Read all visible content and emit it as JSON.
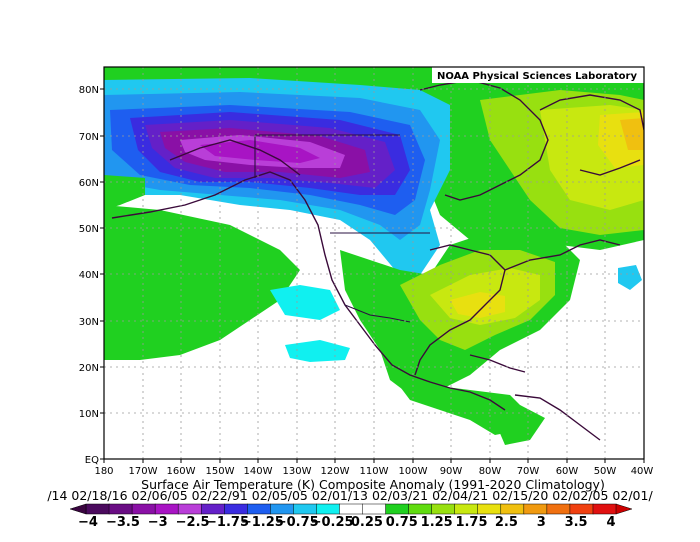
{
  "credit": "NOAA Physical Sciences Laboratory",
  "title": "Surface Air Temperature (K) Composite Anomaly (1991-2020 Climatology)",
  "dates_line": "/14 02/18/16 02/06/05 02/22/91 02/05/05 02/01/13 02/03/21 02/04/21 02/15/20 02/02/05 02/01/",
  "y_ticks": [
    "EQ",
    "10N",
    "20N",
    "30N",
    "40N",
    "50N",
    "60N",
    "70N",
    "80N"
  ],
  "x_ticks": [
    "180",
    "170W",
    "160W",
    "150W",
    "140W",
    "130W",
    "120W",
    "110W",
    "100W",
    "90W",
    "80W",
    "70W",
    "60W",
    "50W",
    "40W"
  ],
  "colorbar": {
    "labels": [
      "-4",
      "-3.5",
      "-3",
      "-2.5",
      "-1.75",
      "-1.25",
      "-0.75",
      "-0.25",
      "0.25",
      "0.75",
      "1.25",
      "1.75",
      "2.5",
      "3",
      "3.5",
      "4"
    ],
    "colors": [
      "#4b0a5e",
      "#6a0d84",
      "#8a10a6",
      "#a814c4",
      "#b93ed8",
      "#6420c8",
      "#3a2ce0",
      "#1e5ef0",
      "#2196f0",
      "#20c8f0",
      "#10f0f0",
      "#ffffff",
      "#ffffff",
      "#20d020",
      "#60dc10",
      "#98e010",
      "#c8e810",
      "#e8e010",
      "#f0c010",
      "#f09a10",
      "#f07010",
      "#f04010",
      "#e01010"
    ]
  },
  "map_bounds": {
    "lon_min": -180,
    "lon_max": -40,
    "lat_min": 0,
    "lat_max": 85
  }
}
